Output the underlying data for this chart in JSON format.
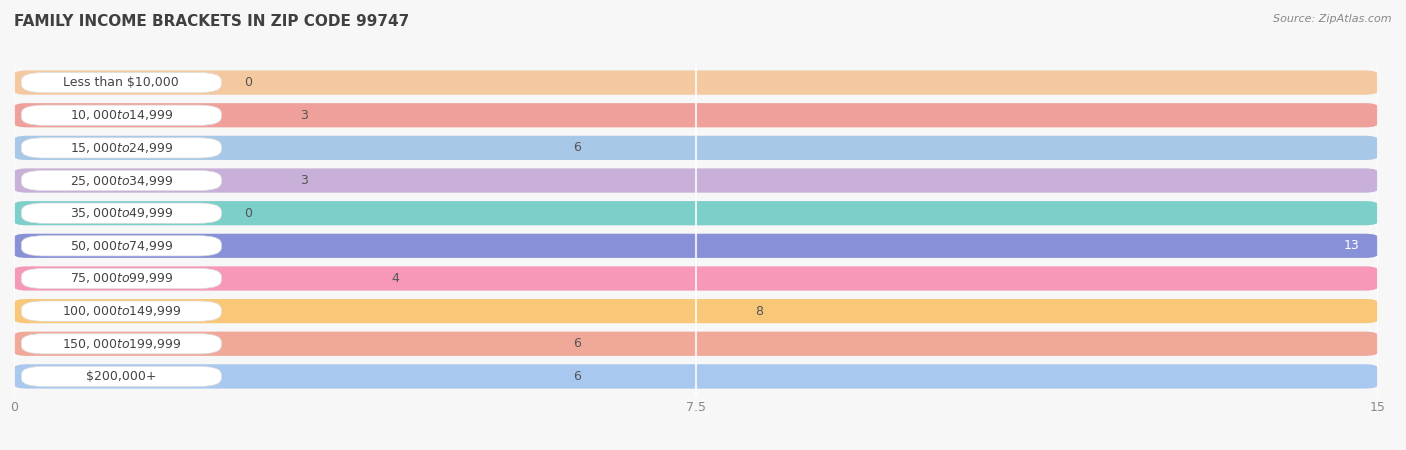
{
  "title": "FAMILY INCOME BRACKETS IN ZIP CODE 99747",
  "source": "Source: ZipAtlas.com",
  "categories": [
    "Less than $10,000",
    "$10,000 to $14,999",
    "$15,000 to $24,999",
    "$25,000 to $34,999",
    "$35,000 to $49,999",
    "$50,000 to $74,999",
    "$75,000 to $99,999",
    "$100,000 to $149,999",
    "$150,000 to $199,999",
    "$200,000+"
  ],
  "values": [
    0,
    3,
    6,
    3,
    0,
    13,
    4,
    8,
    6,
    6
  ],
  "bar_colors": [
    "#f5c9a0",
    "#f0a09a",
    "#a8c8e8",
    "#c8b0d8",
    "#7dcfca",
    "#8890d8",
    "#f898b8",
    "#f8c878",
    "#f0a898",
    "#a8c8f0"
  ],
  "xlim_max": 15,
  "xticks": [
    0,
    7.5,
    15
  ],
  "background_color": "#f7f7f7",
  "bar_bg_color": "#e8e8e8",
  "title_fontsize": 11,
  "source_fontsize": 8,
  "label_fontsize": 9,
  "value_fontsize": 9
}
